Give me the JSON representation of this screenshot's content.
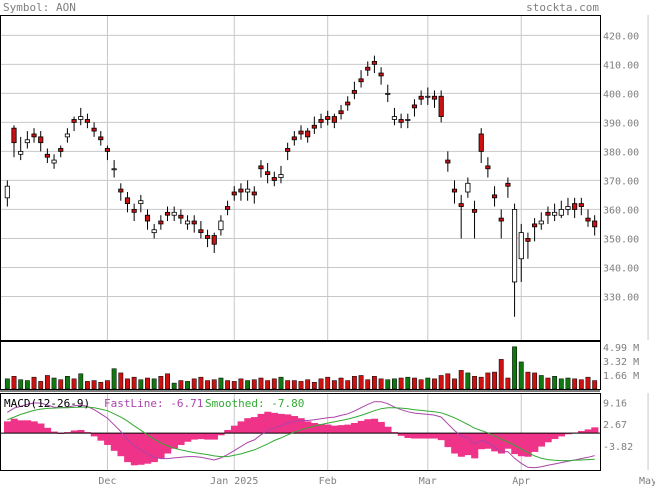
{
  "header": {
    "symbol_label": "Symbol: AON",
    "site": "stockta.com"
  },
  "colors": {
    "up": "#ffffff",
    "down": "#cc1111",
    "vol_up": "#117711",
    "vol_down": "#cc1111",
    "grid": "#c8c8c8",
    "fast": "#aa44aa",
    "smooth": "#33aa33",
    "hist": "#ee3388"
  },
  "chart_data": [
    {
      "type": "candlestick",
      "title": "",
      "ylim": [
        315,
        427
      ],
      "y_ticks": [
        "420.00",
        "410.00",
        "400.00",
        "390.00",
        "380.00",
        "370.00",
        "360.00",
        "350.00",
        "340.00",
        "330.00"
      ],
      "y_tick_values": [
        420,
        410,
        400,
        390,
        380,
        370,
        360,
        350,
        340,
        330
      ],
      "x_labels": [
        "Dec",
        "Jan 2025",
        "Feb",
        "Mar",
        "Apr",
        "May"
      ],
      "x_label_index": [
        15,
        34,
        48,
        63,
        77,
        96
      ],
      "closes": [
        368,
        383,
        380,
        384,
        385,
        383,
        378,
        377,
        380,
        386,
        390,
        392,
        390,
        387,
        384,
        380,
        374,
        366,
        362,
        359,
        363,
        356,
        353,
        355,
        358,
        359,
        357,
        356,
        355,
        352,
        350,
        348,
        356,
        360,
        365,
        366,
        367,
        365,
        374,
        372,
        370,
        372,
        380,
        384,
        386,
        385,
        388,
        390,
        391,
        390,
        393,
        396,
        400,
        404,
        408,
        410,
        406,
        400,
        392,
        390,
        391,
        395,
        398,
        399,
        398,
        392,
        376,
        366,
        361,
        369,
        359,
        380,
        374,
        364,
        356,
        368,
        360,
        352,
        349,
        354,
        356,
        358,
        359,
        360,
        361,
        360,
        361,
        356,
        354
      ],
      "opens": [
        364,
        388,
        379,
        383,
        386,
        385,
        379,
        376,
        381,
        385,
        391,
        391,
        391,
        388,
        385,
        381,
        374,
        367,
        364,
        360,
        362,
        358,
        352,
        356,
        359,
        358,
        358,
        355,
        356,
        353,
        351,
        351,
        353,
        361,
        366,
        367,
        366,
        366,
        375,
        373,
        371,
        371,
        381,
        385,
        387,
        387,
        389,
        391,
        392,
        392,
        394,
        397,
        401,
        405,
        409,
        411,
        407,
        400,
        391,
        391,
        391,
        396,
        399,
        399,
        399,
        399,
        377,
        367,
        362,
        366,
        360,
        386,
        375,
        365,
        357,
        369,
        335,
        343,
        350,
        355,
        355,
        359,
        358,
        358,
        360,
        362,
        362,
        357,
        356
      ],
      "highs": [
        370,
        389,
        385,
        387,
        388,
        387,
        381,
        379,
        382,
        388,
        392,
        395,
        393,
        390,
        387,
        382,
        377,
        369,
        366,
        362,
        365,
        360,
        355,
        358,
        361,
        361,
        360,
        358,
        358,
        356,
        353,
        352,
        358,
        363,
        368,
        369,
        370,
        368,
        377,
        376,
        373,
        375,
        383,
        387,
        389,
        388,
        392,
        393,
        394,
        393,
        396,
        399,
        404,
        408,
        411,
        413,
        409,
        403,
        395,
        393,
        393,
        398,
        401,
        402,
        401,
        401,
        380,
        370,
        365,
        371,
        363,
        388,
        378,
        368,
        360,
        371,
        362,
        355,
        352,
        357,
        359,
        361,
        362,
        363,
        364,
        364,
        364,
        360,
        358
      ],
      "lows": [
        361,
        378,
        377,
        381,
        383,
        380,
        376,
        374,
        378,
        383,
        387,
        389,
        388,
        385,
        382,
        377,
        371,
        363,
        359,
        356,
        359,
        353,
        350,
        353,
        356,
        356,
        355,
        353,
        352,
        350,
        347,
        345,
        351,
        358,
        363,
        363,
        363,
        362,
        371,
        369,
        368,
        369,
        377,
        382,
        384,
        383,
        386,
        388,
        389,
        388,
        391,
        394,
        398,
        402,
        406,
        407,
        403,
        397,
        389,
        388,
        388,
        392,
        396,
        396,
        395,
        390,
        373,
        362,
        350,
        364,
        350,
        376,
        371,
        361,
        350,
        364,
        323,
        335,
        343,
        349,
        353,
        355,
        356,
        357,
        358,
        357,
        358,
        354,
        351
      ]
    },
    {
      "type": "bar",
      "title": "",
      "y_ticks": [
        "4.99 M",
        "3.32 M",
        "1.66 M"
      ],
      "y_tick_values": [
        4.99,
        3.32,
        1.66
      ],
      "ylim": [
        0,
        5.2
      ],
      "volumes": [
        1.2,
        1.5,
        1.1,
        1.0,
        1.4,
        0.9,
        1.6,
        1.3,
        1.1,
        1.5,
        1.2,
        1.8,
        0.9,
        1.0,
        0.8,
        1.0,
        2.4,
        1.9,
        1.2,
        1.4,
        1.1,
        1.3,
        1.2,
        1.5,
        1.8,
        0.7,
        1.0,
        0.9,
        1.2,
        1.4,
        1.0,
        1.1,
        1.3,
        1.0,
        0.9,
        1.2,
        1.0,
        1.1,
        1.3,
        1.0,
        1.2,
        1.4,
        1.0,
        1.0,
        0.9,
        1.1,
        0.8,
        1.2,
        1.4,
        1.0,
        1.3,
        1.0,
        1.5,
        1.6,
        1.1,
        1.5,
        1.2,
        1.1,
        1.2,
        1.3,
        1.4,
        1.3,
        1.1,
        1.3,
        1.2,
        1.6,
        1.8,
        1.2,
        2.2,
        1.9,
        1.5,
        1.4,
        1.9,
        2.0,
        3.5,
        1.3,
        4.99,
        3.2,
        2.0,
        1.9,
        1.6,
        1.3,
        1.5,
        1.2,
        1.3,
        1.2,
        1.1,
        1.4,
        1.0
      ]
    },
    {
      "type": "line",
      "title": "MACD(12-26-9)",
      "fast_label": "FastLine: -6.71",
      "smooth_label": "Smoothed: -7.80",
      "y_ticks": [
        "9.16",
        "2.67",
        "-3.82"
      ],
      "y_tick_values": [
        9.16,
        2.67,
        -3.82
      ],
      "ylim": [
        -11,
        12
      ],
      "fast": [
        6.2,
        7.5,
        8.0,
        8.6,
        9.0,
        9.0,
        8.4,
        7.8,
        7.6,
        7.8,
        8.2,
        8.4,
        8.0,
        7.0,
        5.8,
        4.5,
        2.5,
        0.5,
        -1.8,
        -3.8,
        -5.0,
        -6.2,
        -7.2,
        -7.6,
        -7.6,
        -7.4,
        -7.2,
        -7.0,
        -7.0,
        -7.2,
        -7.6,
        -8.0,
        -7.4,
        -6.4,
        -5.2,
        -4.0,
        -2.8,
        -2.0,
        -0.5,
        0.8,
        1.6,
        2.2,
        3.0,
        3.5,
        3.8,
        3.8,
        4.0,
        4.3,
        4.6,
        4.8,
        5.3,
        5.8,
        6.6,
        7.6,
        8.6,
        9.4,
        9.4,
        8.8,
        7.8,
        7.0,
        6.4,
        6.0,
        5.8,
        5.6,
        5.4,
        4.8,
        2.8,
        0.8,
        -0.8,
        -1.5,
        -3.2,
        -2.2,
        -2.8,
        -4.2,
        -5.6,
        -5.5,
        -7.5,
        -9.0,
        -10.2,
        -10.3,
        -10.0,
        -9.6,
        -9.2,
        -8.8,
        -8.4,
        -8.0,
        -7.6,
        -7.2,
        -6.71
      ],
      "smoothed": [
        4.0,
        4.8,
        5.6,
        6.2,
        6.8,
        7.2,
        7.4,
        7.5,
        7.6,
        7.6,
        7.7,
        7.8,
        7.8,
        7.6,
        7.2,
        6.7,
        5.8,
        4.8,
        3.6,
        2.2,
        0.9,
        -0.5,
        -1.8,
        -2.9,
        -3.8,
        -4.5,
        -5.0,
        -5.4,
        -5.8,
        -6.1,
        -6.4,
        -6.8,
        -7.0,
        -7.0,
        -6.6,
        -6.2,
        -5.6,
        -5.0,
        -4.1,
        -3.2,
        -2.2,
        -1.4,
        -0.5,
        0.3,
        1.0,
        1.6,
        2.1,
        2.6,
        3.0,
        3.4,
        3.8,
        4.2,
        4.7,
        5.3,
        6.0,
        6.7,
        7.3,
        7.6,
        7.6,
        7.5,
        7.3,
        7.0,
        6.8,
        6.6,
        6.4,
        6.1,
        5.4,
        4.6,
        3.6,
        2.6,
        1.5,
        0.8,
        0.1,
        -0.8,
        -1.8,
        -2.6,
        -3.6,
        -4.7,
        -5.8,
        -6.8,
        -7.5,
        -7.9,
        -8.1,
        -8.2,
        -8.2,
        -8.1,
        -8.0,
        -7.9,
        -7.8
      ]
    }
  ]
}
